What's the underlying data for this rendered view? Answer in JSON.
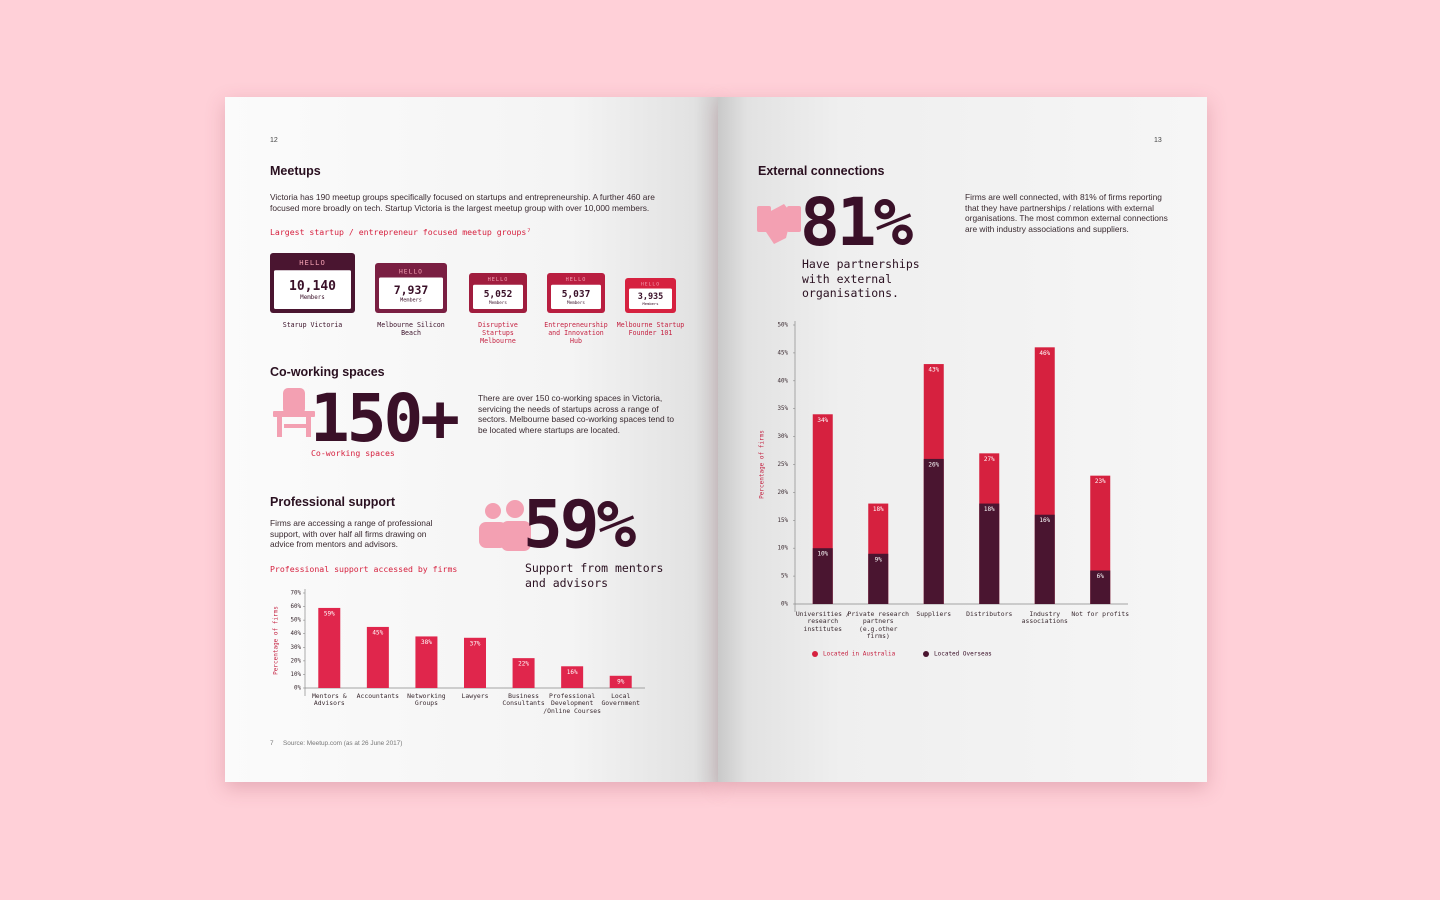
{
  "left_page": {
    "page_number": "12",
    "meetups": {
      "title": "Meetups",
      "text": "Victoria has 190 meetup groups specifically focused on startups and entrepreneurship. A further 460 are focused more broadly on tech. Startup Victoria is the largest meetup group with over 10,000 members.",
      "subtitle": "Largest startup / entrepreneur focused meetup groups⁷",
      "badge_header": "HELLO",
      "badge_unit": "Members",
      "badges": [
        {
          "value": "10,140",
          "name": "Starup Victoria"
        },
        {
          "value": "7,937",
          "name": "Melbourne Silicon Beach"
        },
        {
          "value": "5,052",
          "name": "Disruptive Startups Melbourne"
        },
        {
          "value": "5,037",
          "name": "Entrepreneurship and Innovation Hub"
        },
        {
          "value": "3,935",
          "name": "Melbourne Startup Founder 101"
        }
      ]
    },
    "coworking": {
      "title": "Co-working spaces",
      "big_number": "150+",
      "caption": "Co-working spaces",
      "text": "There are over 150 co-working spaces in Victoria, servicing the needs of startups across a range of sectors. Melbourne based co-working spaces tend to be located where startups are located."
    },
    "support": {
      "title": "Professional support",
      "text": "Firms are accessing a range of professional support, with over half all firms drawing on advice from mentors and advisors.",
      "big_number": "59%",
      "caption": "Support from mentors and advisors",
      "chart_title": "Professional support accessed by firms"
    },
    "footnote": {
      "number": "7",
      "text": "Source: Meetup.com (as at 26 June 2017)"
    }
  },
  "right_page": {
    "page_number": "13",
    "external": {
      "title": "External connections",
      "big_number": "81%",
      "caption": "Have partnerships with external organisations.",
      "text": "Firms are well connected, with 81% of firms reporting that they have partnerships / relations with external organisations. The most common external connections are with industry associations and suppliers."
    }
  },
  "chart_data": [
    {
      "type": "bar",
      "ylabel": "Percentage of firms",
      "categories": [
        "Mentors & Advisors",
        "Accountants",
        "Networking Groups",
        "Lawyers",
        "Business Consultants",
        "Professional Development /Online Courses",
        "Local Government"
      ],
      "values": [
        59,
        45,
        38,
        37,
        22,
        16,
        9
      ],
      "value_labels": [
        "59%",
        "45%",
        "38%",
        "37%",
        "22%",
        "16%",
        "9%"
      ],
      "color": "#e0264c",
      "ylim": [
        0,
        70
      ],
      "yticks": [
        {
          "value": 0,
          "label": "0%"
        },
        {
          "value": 10,
          "label": "10%"
        },
        {
          "value": 20,
          "label": "20%"
        },
        {
          "value": 30,
          "label": "30%"
        },
        {
          "value": 40,
          "label": "40%"
        },
        {
          "value": 50,
          "label": "50%"
        },
        {
          "value": 60,
          "label": "60%"
        },
        {
          "value": 70,
          "label": "70%"
        }
      ]
    },
    {
      "type": "bar",
      "overlap": true,
      "ylabel": "Percentage of firms",
      "categories": [
        "Universities / research institutes",
        "Private research partners (e.g.other firms)",
        "Suppliers",
        "Distributors",
        "Industry associations",
        "Not for profits"
      ],
      "series": [
        {
          "name": "Located in Australia",
          "color": "#d6213f",
          "values": [
            34,
            18,
            43,
            27,
            46,
            23
          ],
          "value_labels": [
            "34%",
            "18%",
            "43%",
            "27%",
            "46%",
            "23%"
          ]
        },
        {
          "name": "Located Overseas",
          "color": "#4a1530",
          "values": [
            10,
            9,
            26,
            18,
            16,
            6
          ],
          "value_labels": [
            "10%",
            "9%",
            "26%",
            "18%",
            "16%",
            "6%"
          ]
        }
      ],
      "ylim": [
        0,
        50
      ],
      "yticks": [
        {
          "value": 0,
          "label": "0%"
        },
        {
          "value": 5,
          "label": "5%"
        },
        {
          "value": 10,
          "label": "10%"
        },
        {
          "value": 15,
          "label": "15%"
        },
        {
          "value": 20,
          "label": "20%"
        },
        {
          "value": 25,
          "label": "25%"
        },
        {
          "value": 30,
          "label": "30%"
        },
        {
          "value": 35,
          "label": "35%"
        },
        {
          "value": 40,
          "label": "40%"
        },
        {
          "value": 45,
          "label": "45%"
        },
        {
          "value": 50,
          "label": "50%"
        }
      ],
      "legend": "bottom"
    }
  ]
}
